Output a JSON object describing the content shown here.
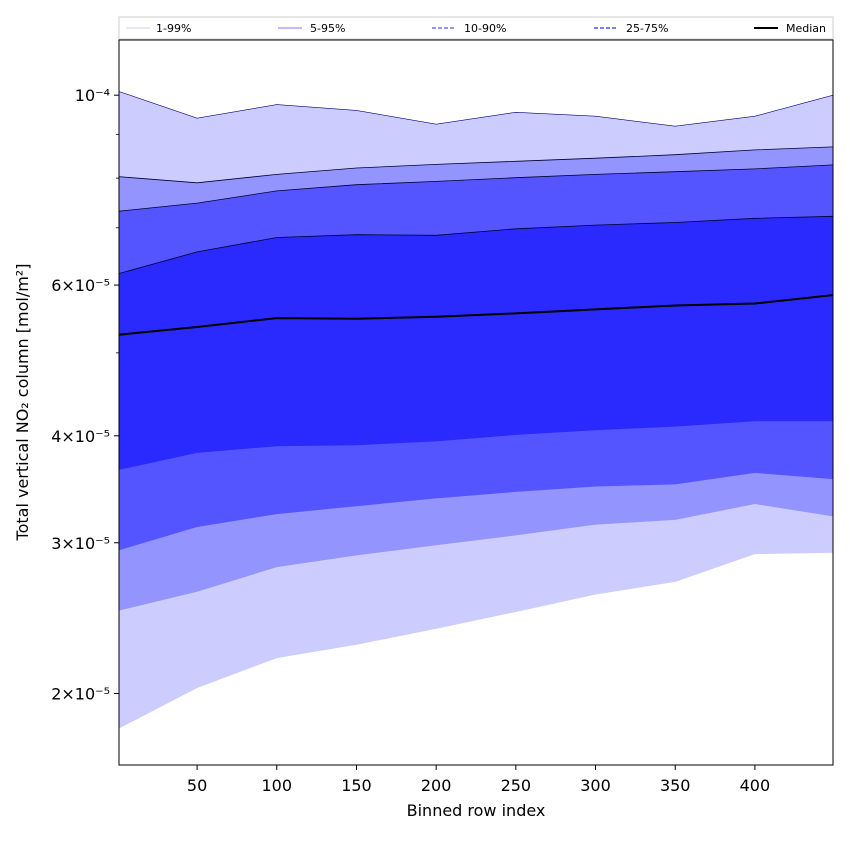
{
  "chart_data": {
    "type": "area",
    "xlabel": "Binned row index",
    "ylabel": "Total vertical NO₂ column [mol/m²]",
    "yscale": "log",
    "xlim": [
      1,
      449
    ],
    "ylim": [
      1.65e-05,
      0.000116
    ],
    "x_ticks": [
      50,
      100,
      150,
      200,
      250,
      300,
      350,
      400
    ],
    "y_ticks": [
      {
        "value": 0.0001,
        "label": "10⁻⁴"
      },
      {
        "value": 6e-05,
        "label": "6×10⁻⁵"
      },
      {
        "value": 4e-05,
        "label": "4×10⁻⁵"
      },
      {
        "value": 3e-05,
        "label": "3×10⁻⁵"
      },
      {
        "value": 2e-05,
        "label": "2×10⁻⁵"
      }
    ],
    "legend_position": "top",
    "x": [
      1,
      50,
      100,
      150,
      200,
      250,
      300,
      350,
      400,
      449
    ],
    "series": [
      {
        "name": "1-99%",
        "color": "#ccccff",
        "style": "solid",
        "lower": [
          1.82e-05,
          2.03e-05,
          2.2e-05,
          2.28e-05,
          2.38e-05,
          2.49e-05,
          2.61e-05,
          2.7e-05,
          2.91e-05,
          2.92e-05
        ],
        "upper": [
          0.000101,
          9.4e-05,
          9.75e-05,
          9.6e-05,
          9.25e-05,
          9.55e-05,
          9.45e-05,
          9.2e-05,
          9.45e-05,
          0.0001
        ]
      },
      {
        "name": "5-95%",
        "color": "#9494ff",
        "style": "solid",
        "lower": [
          2.5e-05,
          2.63e-05,
          2.81e-05,
          2.9e-05,
          2.98e-05,
          3.06e-05,
          3.15e-05,
          3.19e-05,
          3.33e-05,
          3.22e-05
        ],
        "upper": [
          8.03e-05,
          7.9e-05,
          8.08e-05,
          8.22e-05,
          8.3e-05,
          8.37e-05,
          8.44e-05,
          8.52e-05,
          8.63e-05,
          8.7e-05
        ]
      },
      {
        "name": "10-90%",
        "color": "#5555ff",
        "style": "dashed",
        "lower": [
          2.94e-05,
          3.13e-05,
          3.24e-05,
          3.31e-05,
          3.38e-05,
          3.44e-05,
          3.49e-05,
          3.51e-05,
          3.62e-05,
          3.56e-05
        ],
        "upper": [
          7.32e-05,
          7.48e-05,
          7.73e-05,
          7.86e-05,
          7.93e-05,
          8.01e-05,
          8.08e-05,
          8.14e-05,
          8.2e-05,
          8.29e-05
        ]
      },
      {
        "name": "25-75%",
        "color": "#2a2aff",
        "style": "dashed",
        "lower": [
          3.65e-05,
          3.82e-05,
          3.89e-05,
          3.9e-05,
          3.94e-05,
          4.01e-05,
          4.06e-05,
          4.1e-05,
          4.16e-05,
          4.16e-05
        ],
        "upper": [
          6.19e-05,
          6.56e-05,
          6.82e-05,
          6.87e-05,
          6.86e-05,
          6.98e-05,
          7.05e-05,
          7.1e-05,
          7.18e-05,
          7.22e-05
        ]
      },
      {
        "name": "Median",
        "color": "#000000",
        "style": "solid",
        "values": [
          5.25e-05,
          5.36e-05,
          5.49e-05,
          5.48e-05,
          5.51e-05,
          5.56e-05,
          5.62e-05,
          5.68e-05,
          5.71e-05,
          5.84e-05
        ]
      }
    ]
  }
}
